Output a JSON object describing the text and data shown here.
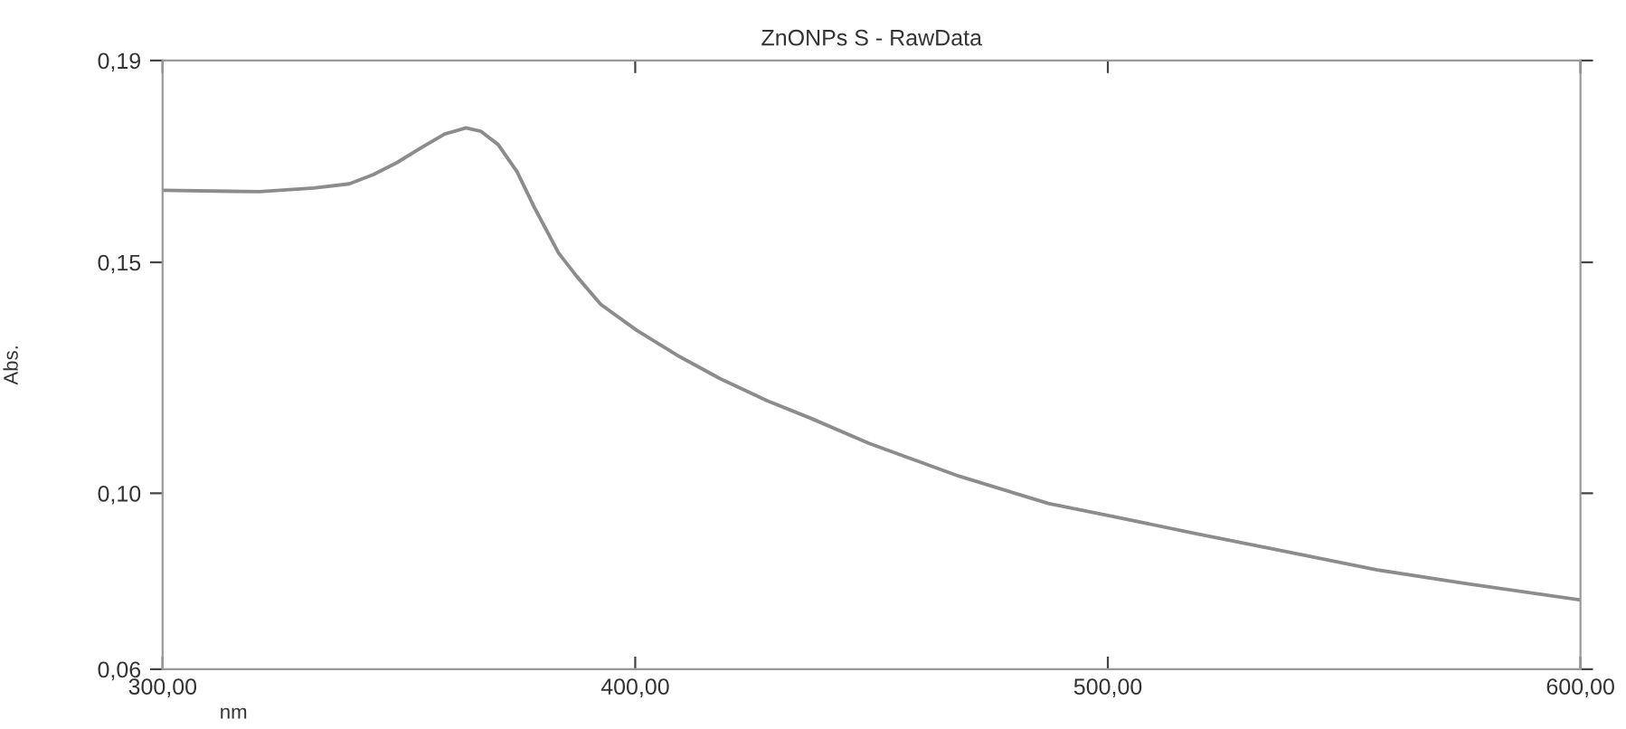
{
  "chart_data": {
    "type": "line",
    "title": "ZnONPs S - RawData",
    "xlabel": "nm",
    "ylabel": "Abs.",
    "xlim": [
      300,
      600
    ],
    "xticks": [
      {
        "value": 300,
        "label": "300,00"
      },
      {
        "value": 400,
        "label": "400,00"
      },
      {
        "value": 500,
        "label": "500,00"
      },
      {
        "value": 600,
        "label": "600,00"
      }
    ],
    "ylim": [
      0.0619,
      0.1937
    ],
    "yticks": [
      {
        "value": 0.0619,
        "label": "0,06"
      },
      {
        "value": 0.1,
        "label": "0,10"
      },
      {
        "value": 0.15,
        "label": "0,15"
      },
      {
        "value": 0.1937,
        "label": "0,19"
      }
    ],
    "grid": false,
    "marker": "none",
    "line_style": "solid",
    "series": [
      {
        "color": "#8c8c8c",
        "x": [
          300,
          320.5,
          332,
          339.5,
          344.6,
          349.6,
          354.7,
          359.7,
          364.2,
          367.3,
          371,
          375,
          378.7,
          383.8,
          387.6,
          392.7,
          400.3,
          409,
          418,
          428,
          437,
          449.5,
          468.5,
          487.4,
          500,
          519,
          538,
          557,
          576,
          600
        ],
        "values": [
          0.1656,
          0.1653,
          0.1661,
          0.167,
          0.169,
          0.1716,
          0.1748,
          0.1778,
          0.1791,
          0.1784,
          0.1755,
          0.1696,
          0.1618,
          0.152,
          0.147,
          0.1409,
          0.1353,
          0.1298,
          0.1248,
          0.12,
          0.1163,
          0.1108,
          0.1037,
          0.0978,
          0.0952,
          0.0912,
          0.0873,
          0.0834,
          0.0804,
          0.0769
        ]
      }
    ]
  }
}
